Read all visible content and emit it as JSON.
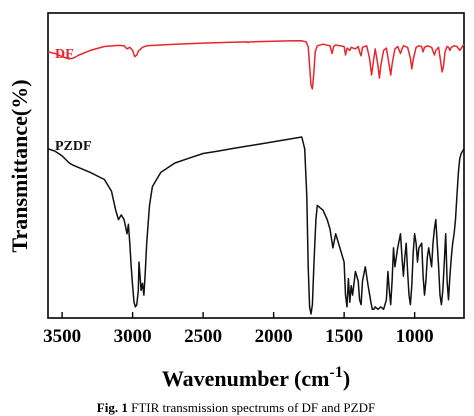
{
  "chart_data": {
    "type": "line",
    "title": "",
    "xlabel": "Wavenumber (cm",
    "xlabel_sup": "-1",
    "xlabel_close": ")",
    "ylabel": "Transmittance(%)",
    "xlim": [
      3600,
      650
    ],
    "x_reversed": true,
    "x_ticks": [
      3500,
      3000,
      2500,
      2000,
      1500,
      1000
    ],
    "y_ticks_shown": false,
    "grid": false,
    "series": [
      {
        "name": "DF",
        "color": "#e8262c",
        "points": [
          [
            3600,
            78
          ],
          [
            3550,
            76
          ],
          [
            3500,
            72
          ],
          [
            3450,
            69
          ],
          [
            3420,
            70
          ],
          [
            3380,
            74
          ],
          [
            3300,
            80
          ],
          [
            3200,
            85
          ],
          [
            3100,
            86.5
          ],
          [
            3060,
            86
          ],
          [
            3040,
            82
          ],
          [
            3020,
            84
          ],
          [
            3000,
            80
          ],
          [
            2985,
            72
          ],
          [
            2970,
            74
          ],
          [
            2960,
            79
          ],
          [
            2930,
            84
          ],
          [
            2900,
            86
          ],
          [
            2700,
            88
          ],
          [
            2500,
            89.5
          ],
          [
            2300,
            90.5
          ],
          [
            2190,
            91
          ],
          [
            2180,
            90.2
          ],
          [
            2170,
            91
          ],
          [
            2000,
            92
          ],
          [
            1900,
            92.3
          ],
          [
            1800,
            92.5
          ],
          [
            1770,
            91
          ],
          [
            1755,
            85
          ],
          [
            1745,
            60
          ],
          [
            1735,
            35
          ],
          [
            1725,
            30
          ],
          [
            1715,
            50
          ],
          [
            1705,
            78
          ],
          [
            1690,
            86
          ],
          [
            1650,
            88
          ],
          [
            1600,
            86
          ],
          [
            1585,
            76
          ],
          [
            1575,
            85
          ],
          [
            1560,
            87
          ],
          [
            1500,
            85
          ],
          [
            1490,
            74
          ],
          [
            1480,
            83
          ],
          [
            1460,
            80
          ],
          [
            1450,
            84
          ],
          [
            1420,
            82
          ],
          [
            1400,
            85
          ],
          [
            1390,
            78
          ],
          [
            1380,
            73
          ],
          [
            1370,
            84
          ],
          [
            1340,
            86
          ],
          [
            1320,
            70
          ],
          [
            1305,
            48
          ],
          [
            1295,
            62
          ],
          [
            1280,
            82
          ],
          [
            1260,
            60
          ],
          [
            1250,
            44
          ],
          [
            1240,
            60
          ],
          [
            1220,
            80
          ],
          [
            1200,
            83
          ],
          [
            1180,
            60
          ],
          [
            1170,
            48
          ],
          [
            1160,
            62
          ],
          [
            1140,
            82
          ],
          [
            1120,
            85
          ],
          [
            1100,
            76
          ],
          [
            1090,
            82
          ],
          [
            1080,
            86
          ],
          [
            1050,
            84
          ],
          [
            1030,
            70
          ],
          [
            1020,
            56
          ],
          [
            1010,
            68
          ],
          [
            990,
            84
          ],
          [
            970,
            86
          ],
          [
            950,
            85
          ],
          [
            940,
            78
          ],
          [
            930,
            84
          ],
          [
            910,
            86
          ],
          [
            880,
            84
          ],
          [
            860,
            74
          ],
          [
            850,
            80
          ],
          [
            830,
            84
          ],
          [
            815,
            65
          ],
          [
            805,
            52
          ],
          [
            795,
            60
          ],
          [
            785,
            78
          ],
          [
            770,
            85
          ],
          [
            760,
            84
          ],
          [
            750,
            80
          ],
          [
            740,
            84
          ],
          [
            720,
            86
          ],
          [
            700,
            85
          ],
          [
            680,
            80
          ],
          [
            650,
            88
          ]
        ]
      },
      {
        "name": "PZDF",
        "color": "#111111",
        "points": [
          [
            3600,
            70
          ],
          [
            3550,
            69
          ],
          [
            3500,
            67
          ],
          [
            3450,
            64
          ],
          [
            3420,
            63
          ],
          [
            3380,
            62
          ],
          [
            3300,
            60
          ],
          [
            3200,
            57
          ],
          [
            3150,
            52
          ],
          [
            3120,
            44
          ],
          [
            3100,
            40
          ],
          [
            3080,
            42
          ],
          [
            3060,
            40
          ],
          [
            3040,
            34
          ],
          [
            3030,
            38
          ],
          [
            3020,
            30
          ],
          [
            3010,
            20
          ],
          [
            3000,
            12
          ],
          [
            2990,
            5
          ],
          [
            2980,
            3
          ],
          [
            2970,
            4
          ],
          [
            2960,
            10
          ],
          [
            2955,
            22
          ],
          [
            2950,
            18
          ],
          [
            2940,
            10
          ],
          [
            2930,
            13
          ],
          [
            2920,
            8
          ],
          [
            2910,
            18
          ],
          [
            2900,
            30
          ],
          [
            2880,
            46
          ],
          [
            2860,
            54
          ],
          [
            2840,
            56
          ],
          [
            2800,
            60
          ],
          [
            2700,
            64
          ],
          [
            2600,
            66
          ],
          [
            2500,
            68
          ],
          [
            2400,
            69
          ],
          [
            2300,
            70
          ],
          [
            2200,
            71
          ],
          [
            2100,
            72
          ],
          [
            2000,
            73
          ],
          [
            1900,
            74
          ],
          [
            1800,
            75
          ],
          [
            1780,
            70
          ],
          [
            1765,
            50
          ],
          [
            1755,
            20
          ],
          [
            1745,
            3
          ],
          [
            1735,
            0
          ],
          [
            1725,
            4
          ],
          [
            1715,
            20
          ],
          [
            1700,
            40
          ],
          [
            1690,
            46
          ],
          [
            1650,
            44
          ],
          [
            1620,
            40
          ],
          [
            1600,
            36
          ],
          [
            1580,
            28
          ],
          [
            1560,
            34
          ],
          [
            1540,
            30
          ],
          [
            1520,
            26
          ],
          [
            1500,
            22
          ],
          [
            1490,
            8
          ],
          [
            1480,
            3
          ],
          [
            1470,
            15
          ],
          [
            1460,
            5
          ],
          [
            1450,
            12
          ],
          [
            1440,
            8
          ],
          [
            1420,
            18
          ],
          [
            1400,
            14
          ],
          [
            1390,
            6
          ],
          [
            1380,
            4
          ],
          [
            1370,
            14
          ],
          [
            1350,
            20
          ],
          [
            1330,
            12
          ],
          [
            1310,
            5
          ],
          [
            1300,
            2
          ],
          [
            1290,
            2
          ],
          [
            1280,
            3
          ],
          [
            1260,
            2
          ],
          [
            1240,
            3
          ],
          [
            1220,
            2
          ],
          [
            1200,
            6
          ],
          [
            1190,
            18
          ],
          [
            1180,
            10
          ],
          [
            1170,
            4
          ],
          [
            1160,
            14
          ],
          [
            1150,
            28
          ],
          [
            1140,
            20
          ],
          [
            1120,
            28
          ],
          [
            1100,
            34
          ],
          [
            1090,
            24
          ],
          [
            1080,
            16
          ],
          [
            1070,
            24
          ],
          [
            1060,
            30
          ],
          [
            1050,
            18
          ],
          [
            1040,
            8
          ],
          [
            1030,
            4
          ],
          [
            1020,
            12
          ],
          [
            1010,
            26
          ],
          [
            1000,
            34
          ],
          [
            990,
            30
          ],
          [
            980,
            22
          ],
          [
            970,
            28
          ],
          [
            950,
            30
          ],
          [
            940,
            16
          ],
          [
            930,
            8
          ],
          [
            920,
            14
          ],
          [
            910,
            24
          ],
          [
            900,
            28
          ],
          [
            880,
            20
          ],
          [
            870,
            30
          ],
          [
            860,
            36
          ],
          [
            850,
            40
          ],
          [
            840,
            30
          ],
          [
            830,
            20
          ],
          [
            820,
            8
          ],
          [
            810,
            4
          ],
          [
            800,
            10
          ],
          [
            790,
            22
          ],
          [
            780,
            34
          ],
          [
            770,
            14
          ],
          [
            760,
            6
          ],
          [
            750,
            16
          ],
          [
            740,
            24
          ],
          [
            730,
            30
          ],
          [
            720,
            34
          ],
          [
            710,
            40
          ],
          [
            700,
            50
          ],
          [
            690,
            60
          ],
          [
            680,
            66
          ],
          [
            670,
            68
          ],
          [
            650,
            70
          ]
        ]
      }
    ]
  },
  "caption": {
    "label": "Fig. 1",
    "text": " FTIR transmission spectrums of DF and PZDF"
  }
}
